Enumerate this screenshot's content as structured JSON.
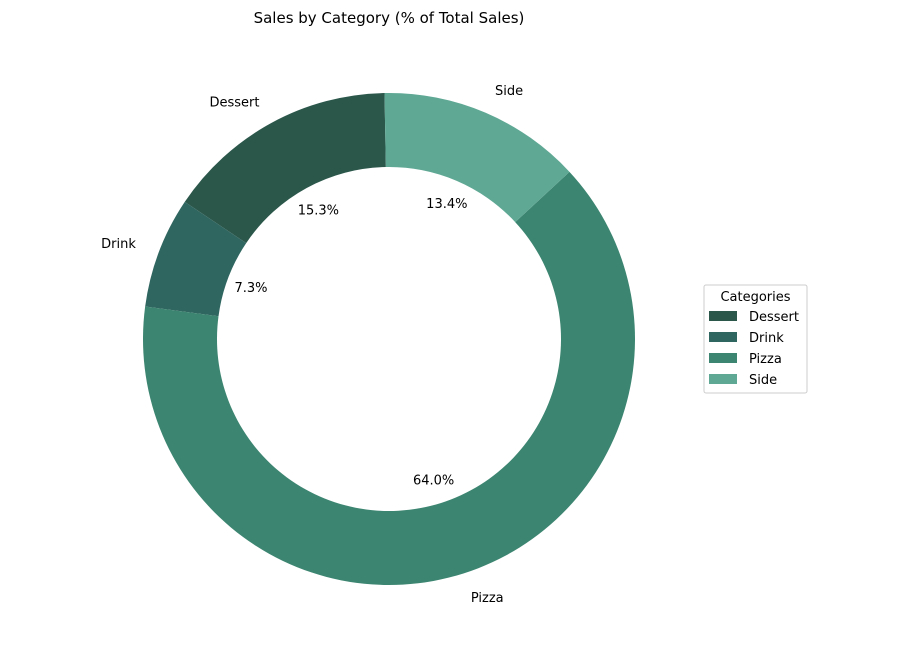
{
  "chart_data": {
    "type": "pie",
    "donut": true,
    "title": "Sales by Category (% of Total Sales)",
    "legend_title": "Categories",
    "legend_position": "right",
    "slices": [
      {
        "label": "Dessert",
        "value": 15.3,
        "pct_label": "15.3%",
        "color": "#2b574b"
      },
      {
        "label": "Drink",
        "value": 7.3,
        "pct_label": "7.3%",
        "color": "#306660"
      },
      {
        "label": "Pizza",
        "value": 64.0,
        "pct_label": "64.0%",
        "color": "#3c8570"
      },
      {
        "label": "Side",
        "value": 13.4,
        "pct_label": "13.4%",
        "color": "#5fa894"
      }
    ]
  }
}
